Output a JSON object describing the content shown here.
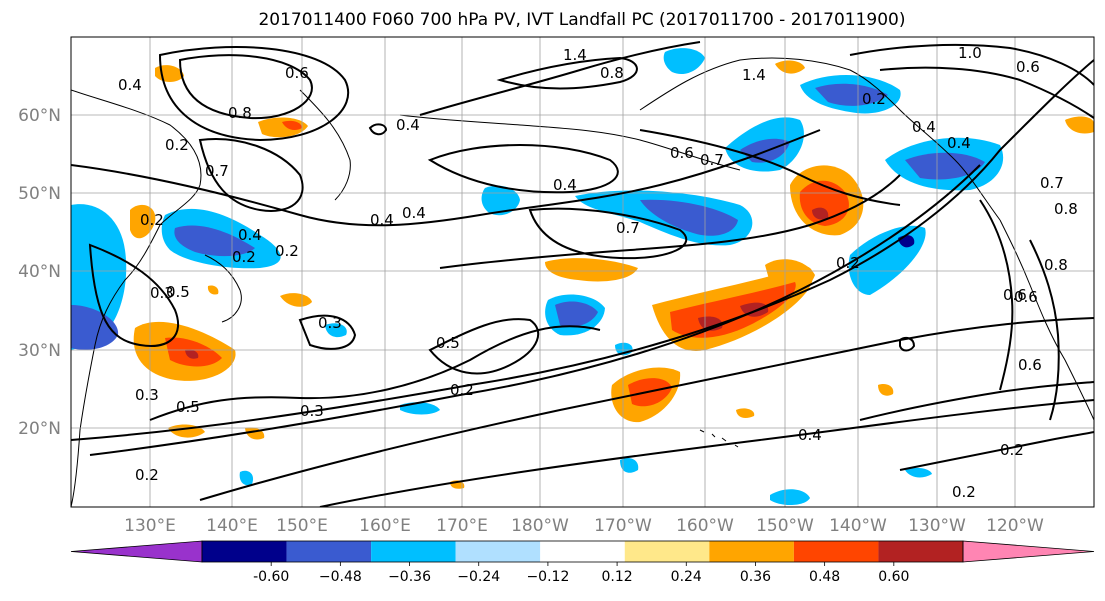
{
  "title": "2017011400 F060 700 hPa PV, IVT Landfall PC (2017011700 - 2017011900)",
  "lat_labels": [
    "60°N",
    "50°N",
    "40°N",
    "30°N",
    "20°N"
  ],
  "lon_labels": [
    "130°E",
    "140°E",
    "150°E",
    "160°E",
    "170°E",
    "180°W",
    "170°W",
    "160°W",
    "150°W",
    "140°W",
    "130°W",
    "120°W"
  ],
  "colorbar": {
    "ticks": [
      "-0.60",
      "−0.48",
      "−0.36",
      "−0.24",
      "−0.12",
      "0.12",
      "0.24",
      "0.36",
      "0.48",
      "0.60"
    ],
    "colors": [
      "#9932cc",
      "#00008b",
      "#3a5bd0",
      "#00bfff",
      "#b0e0ff",
      "#ffffff",
      "#ffe88a",
      "#ffa500",
      "#ff4500",
      "#b22222",
      "#ff85b3"
    ]
  },
  "contour_labels": [
    "0.4",
    "0.6",
    "0.8",
    "1.4",
    "1.4",
    "0.8",
    "0.6",
    "0.2",
    "0.3",
    "0.3",
    "0.5",
    "0.5",
    "0.3",
    "0.2",
    "0.4",
    "0.4",
    "0.7",
    "0.4",
    "0.5",
    "0.2",
    "0.3",
    "0.4",
    "0.2",
    "0.2",
    "0.6",
    "0.8",
    "0.6",
    "0.4",
    "0.2",
    "0.7",
    "0.4",
    "0.2",
    "0.6",
    "0.7",
    "0.6",
    "0.2",
    "0.4",
    "0.2",
    "1.0",
    "0.8",
    "0.4",
    "0.7",
    "0.2"
  ]
}
